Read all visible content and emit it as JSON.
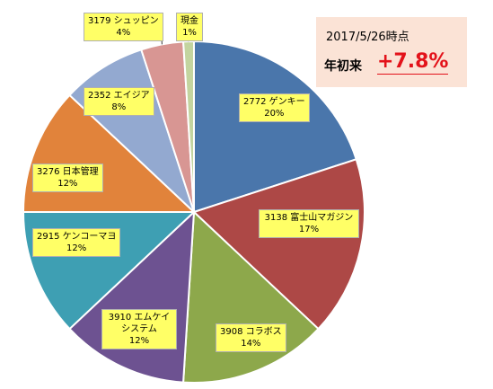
{
  "chart_data": {
    "type": "pie",
    "categories": [
      "2772 ゲンキー",
      "3138 富士山マガジン",
      "3908 コラボス",
      "3910 エムケイシステム",
      "2915 ケンコーマヨ",
      "3276 日本管理",
      "2352 エイジア",
      "3179 シュッピン",
      "現金"
    ],
    "values": [
      20,
      17,
      14,
      12,
      12,
      12,
      8,
      4,
      1
    ],
    "percent_labels": [
      "20%",
      "17%",
      "14%",
      "12%",
      "12%",
      "12%",
      "8%",
      "4%",
      "1%"
    ],
    "colors": [
      "#4a76ab",
      "#ad4846",
      "#8da84b",
      "#6d5291",
      "#3e9fb3",
      "#e1833b",
      "#93a9d0",
      "#d89693",
      "#c3d49f"
    ],
    "label_names": [
      "2772 ゲンキー",
      "3138 富士山マガジン",
      "3908 コラボス",
      "3910 エムケイ\nシステム",
      "2915 ケンコーマヨ",
      "3276 日本管理",
      "2352 エイジア",
      "3179 シュッピン",
      "現金"
    ]
  },
  "info": {
    "date": "2017/5/26時点",
    "ytd_label": "年初来",
    "ytd_value": "+7.8%"
  }
}
